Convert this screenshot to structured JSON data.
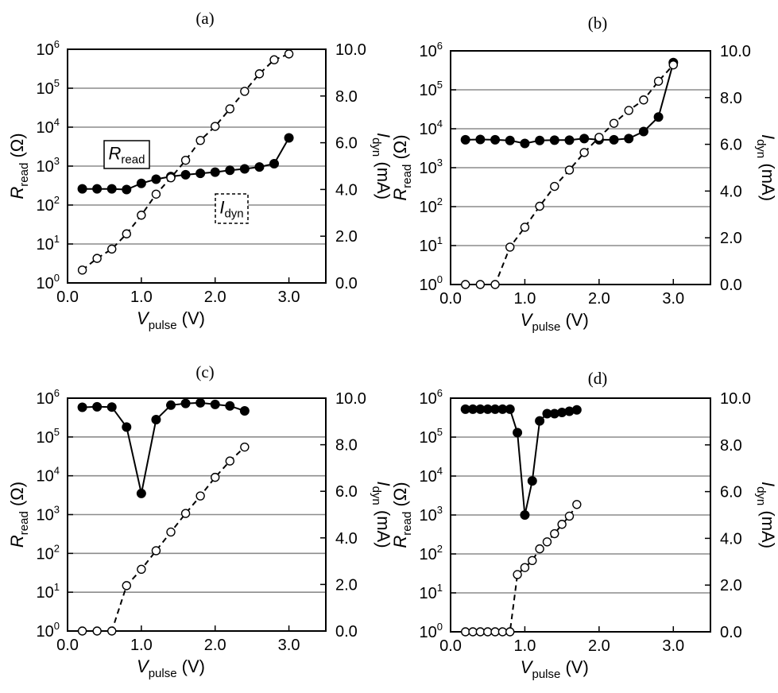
{
  "chart_data": [
    {
      "type": "line",
      "label": "(a)",
      "xlabel": {
        "main": "V",
        "sub": "pulse",
        "unit": " (V)"
      },
      "ylabel_left": {
        "main": "R",
        "sub": "read",
        "unit": " (Ω)"
      },
      "ylabel_right": {
        "main": "I",
        "sub": "dyn",
        "unit": " (mA)"
      },
      "xlim": [
        0,
        3.5
      ],
      "ylim_left": [
        1,
        1000000
      ],
      "ylim_right": [
        0,
        10
      ],
      "x_ticks": [
        "0.0",
        "1.0",
        "2.0",
        "3.0"
      ],
      "y_left_ticks": [
        "10",
        "10",
        "10",
        "10",
        "10",
        "10",
        "10"
      ],
      "y_left_exponents": [
        "0",
        "1",
        "2",
        "3",
        "4",
        "5",
        "6"
      ],
      "y_right_ticks": [
        "0.0",
        "2.0",
        "4.0",
        "6.0",
        "8.0",
        "10.0"
      ],
      "grid": true,
      "annotations": [
        {
          "main": "R",
          "sub": "read",
          "style": "solid"
        },
        {
          "main": "I",
          "sub": "dyn",
          "style": "dashed"
        }
      ],
      "series": [
        {
          "name": "R_read",
          "axis": "left",
          "marker": "filled",
          "line": "solid",
          "x": [
            0.2,
            0.4,
            0.6,
            0.8,
            1.0,
            1.2,
            1.4,
            1.6,
            1.8,
            2.0,
            2.2,
            2.4,
            2.6,
            2.8,
            3.0
          ],
          "values": [
            260,
            260,
            260,
            250,
            360,
            460,
            540,
            600,
            650,
            700,
            780,
            850,
            950,
            1150,
            5300
          ]
        },
        {
          "name": "I_dyn",
          "axis": "right",
          "marker": "open",
          "line": "dashed",
          "x": [
            0.2,
            0.4,
            0.6,
            0.8,
            1.0,
            1.2,
            1.4,
            1.6,
            1.8,
            2.0,
            2.2,
            2.4,
            2.6,
            2.8,
            3.0
          ],
          "values": [
            0.55,
            1.05,
            1.45,
            2.1,
            2.9,
            3.8,
            4.5,
            5.25,
            6.1,
            6.7,
            7.45,
            8.2,
            8.95,
            9.55,
            9.8
          ]
        }
      ]
    },
    {
      "type": "line",
      "label": "(b)",
      "xlabel": {
        "main": "V",
        "sub": "pulse",
        "unit": " (V)"
      },
      "ylabel_left": {
        "main": "R",
        "sub": "read",
        "unit": " (Ω)"
      },
      "ylabel_right": {
        "main": "I",
        "sub": "dyn",
        "unit": " (mA)"
      },
      "xlim": [
        0,
        3.5
      ],
      "ylim_left": [
        1,
        1000000
      ],
      "ylim_right": [
        0,
        10
      ],
      "x_ticks": [
        "0.0",
        "1.0",
        "2.0",
        "3.0"
      ],
      "y_left_ticks": [
        "10",
        "10",
        "10",
        "10",
        "10",
        "10",
        "10"
      ],
      "y_left_exponents": [
        "0",
        "1",
        "2",
        "3",
        "4",
        "5",
        "6"
      ],
      "y_right_ticks": [
        "0.0",
        "2.0",
        "4.0",
        "6.0",
        "8.0",
        "10.0"
      ],
      "grid": true,
      "series": [
        {
          "name": "R_read",
          "axis": "left",
          "marker": "filled",
          "line": "solid",
          "x": [
            0.2,
            0.4,
            0.6,
            0.8,
            1.0,
            1.2,
            1.4,
            1.6,
            1.8,
            2.0,
            2.2,
            2.4,
            2.6,
            2.8,
            3.0
          ],
          "values": [
            5200,
            5300,
            5200,
            5000,
            4200,
            5000,
            5100,
            5100,
            5600,
            5200,
            5200,
            5600,
            8500,
            20000,
            500000
          ]
        },
        {
          "name": "I_dyn",
          "axis": "right",
          "marker": "open",
          "line": "dashed",
          "x": [
            0.2,
            0.4,
            0.6,
            0.8,
            1.0,
            1.2,
            1.4,
            1.6,
            1.8,
            2.0,
            2.2,
            2.4,
            2.6,
            2.8,
            3.0
          ],
          "values": [
            0.0,
            0.0,
            0.0,
            1.6,
            2.45,
            3.35,
            4.2,
            4.9,
            5.65,
            6.3,
            6.9,
            7.45,
            7.9,
            8.7,
            9.4
          ]
        }
      ]
    },
    {
      "type": "line",
      "label": "(c)",
      "xlabel": {
        "main": "V",
        "sub": "pulse",
        "unit": " (V)"
      },
      "ylabel_left": {
        "main": "R",
        "sub": "read",
        "unit": " (Ω)"
      },
      "ylabel_right": {
        "main": "I",
        "sub": "dyn",
        "unit": " (mA)"
      },
      "xlim": [
        0,
        3.5
      ],
      "ylim_left": [
        1,
        1000000
      ],
      "ylim_right": [
        0,
        10
      ],
      "x_ticks": [
        "0.0",
        "1.0",
        "2.0",
        "3.0"
      ],
      "y_left_ticks": [
        "10",
        "10",
        "10",
        "10",
        "10",
        "10",
        "10"
      ],
      "y_left_exponents": [
        "0",
        "1",
        "2",
        "3",
        "4",
        "5",
        "6"
      ],
      "y_right_ticks": [
        "0.0",
        "2.0",
        "4.0",
        "6.0",
        "8.0",
        "10.0"
      ],
      "grid": true,
      "series": [
        {
          "name": "R_read",
          "axis": "left",
          "marker": "filled",
          "line": "solid",
          "x": [
            0.2,
            0.4,
            0.6,
            0.8,
            1.0,
            1.2,
            1.4,
            1.6,
            1.8,
            2.0,
            2.2,
            2.4
          ],
          "values": [
            580000,
            600000,
            590000,
            180000,
            3500,
            280000,
            660000,
            730000,
            760000,
            690000,
            630000,
            470000
          ]
        },
        {
          "name": "I_dyn",
          "axis": "right",
          "marker": "open",
          "line": "dashed",
          "x": [
            0.2,
            0.4,
            0.6,
            0.8,
            1.0,
            1.2,
            1.4,
            1.6,
            1.8,
            2.0,
            2.2,
            2.4
          ],
          "values": [
            0.0,
            0.0,
            0.0,
            1.95,
            2.65,
            3.45,
            4.25,
            5.05,
            5.8,
            6.6,
            7.3,
            7.9
          ]
        }
      ]
    },
    {
      "type": "line",
      "label": "(d)",
      "xlabel": {
        "main": "V",
        "sub": "pulse",
        "unit": " (V)"
      },
      "ylabel_left": {
        "main": "R",
        "sub": "read",
        "unit": " (Ω)"
      },
      "ylabel_right": {
        "main": "I",
        "sub": "dyn",
        "unit": " (mA)"
      },
      "xlim": [
        0,
        3.5
      ],
      "ylim_left": [
        1,
        1000000
      ],
      "ylim_right": [
        0,
        10
      ],
      "x_ticks": [
        "0.0",
        "1.0",
        "2.0",
        "3.0"
      ],
      "y_left_ticks": [
        "10",
        "10",
        "10",
        "10",
        "10",
        "10",
        "10"
      ],
      "y_left_exponents": [
        "0",
        "1",
        "2",
        "3",
        "4",
        "5",
        "6"
      ],
      "y_right_ticks": [
        "0.0",
        "2.0",
        "4.0",
        "6.0",
        "8.0",
        "10.0"
      ],
      "grid": true,
      "series": [
        {
          "name": "R_read",
          "axis": "left",
          "marker": "filled",
          "line": "solid",
          "x": [
            0.2,
            0.3,
            0.4,
            0.5,
            0.6,
            0.7,
            0.8,
            0.9,
            1.0,
            1.1,
            1.2,
            1.3,
            1.4,
            1.5,
            1.6,
            1.7
          ],
          "values": [
            520000,
            520000,
            520000,
            520000,
            520000,
            520000,
            520000,
            130000,
            1000,
            7500,
            260000,
            400000,
            400000,
            430000,
            460000,
            500000
          ]
        },
        {
          "name": "I_dyn",
          "axis": "right",
          "marker": "open",
          "line": "dashed",
          "x": [
            0.2,
            0.3,
            0.4,
            0.5,
            0.6,
            0.7,
            0.8,
            0.9,
            1.0,
            1.1,
            1.2,
            1.3,
            1.4,
            1.5,
            1.6,
            1.7
          ],
          "values": [
            0.0,
            0.0,
            0.0,
            0.0,
            0.0,
            0.0,
            0.0,
            2.45,
            2.75,
            3.05,
            3.55,
            3.85,
            4.2,
            4.6,
            4.95,
            5.45
          ]
        }
      ]
    }
  ]
}
